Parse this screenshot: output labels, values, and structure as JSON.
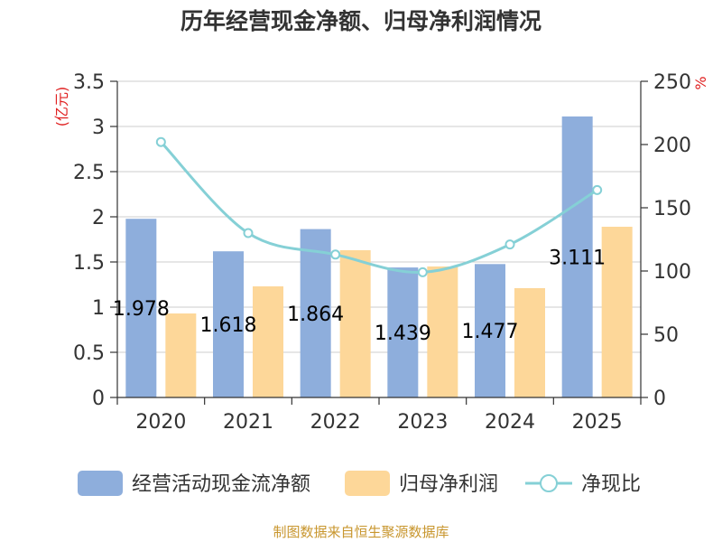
{
  "chart_data": {
    "type": "bar",
    "title": "历年经营现金净额、归母净利润情况",
    "categories": [
      "2020",
      "2021",
      "2022",
      "2023",
      "2024",
      "2025"
    ],
    "series": [
      {
        "name": "经营活动现金流净额",
        "type": "bar",
        "axis": "left",
        "color": "#8eaedc",
        "values": [
          1.978,
          1.618,
          1.864,
          1.439,
          1.477,
          3.111
        ],
        "labels": [
          "1.978",
          "1.618",
          "1.864",
          "1.439",
          "1.477",
          "3.111"
        ]
      },
      {
        "name": "归母净利润",
        "type": "bar",
        "axis": "left",
        "color": "#fdd799",
        "values": [
          0.93,
          1.23,
          1.63,
          1.45,
          1.21,
          1.89
        ]
      },
      {
        "name": "净现比",
        "type": "line",
        "axis": "right",
        "color": "#85d0d6",
        "values": [
          202,
          130,
          113,
          99,
          121,
          164
        ]
      }
    ],
    "y_left": {
      "label": "(亿元)",
      "ylim": [
        0,
        3.5
      ],
      "ticks": [
        "0",
        "0.5",
        "1",
        "1.5",
        "2",
        "2.5",
        "3",
        "3.5"
      ]
    },
    "y_right": {
      "label": "%",
      "ylim": [
        0,
        250
      ],
      "ticks": [
        "0",
        "50",
        "100",
        "150",
        "200",
        "250"
      ]
    },
    "grid": true,
    "legend_position": "bottom"
  },
  "source": "制图数据来自恒生聚源数据库"
}
